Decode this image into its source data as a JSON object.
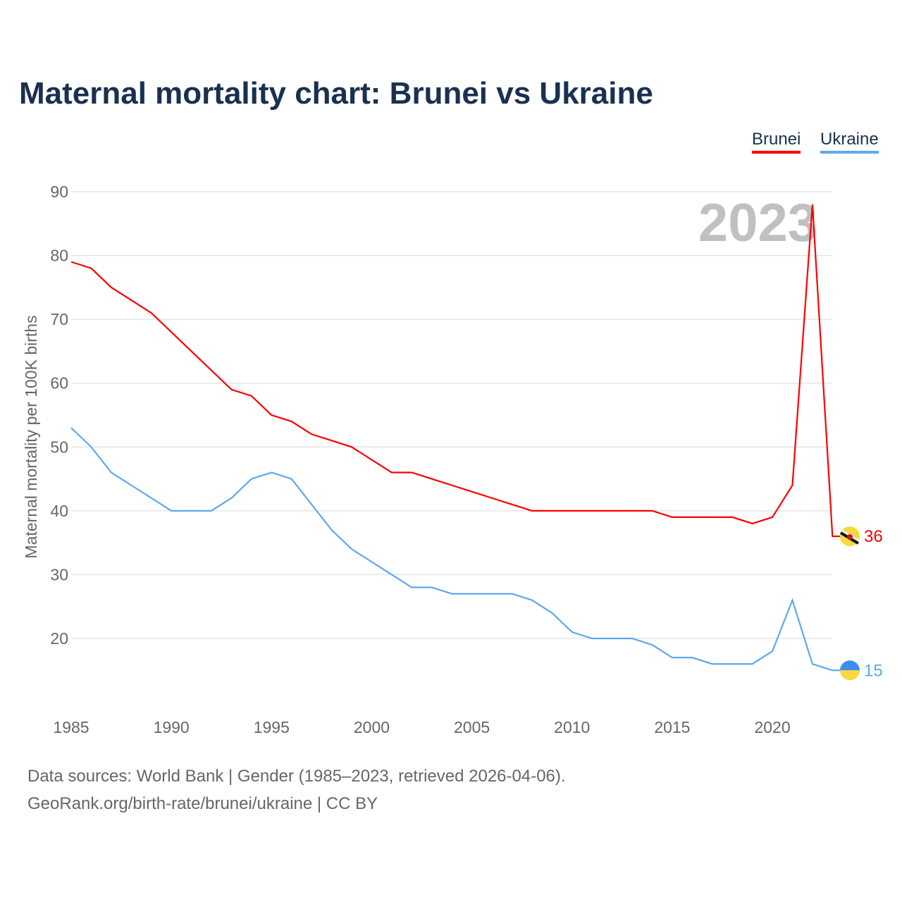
{
  "title": "Maternal mortality chart: Brunei vs Ukraine",
  "legend": [
    {
      "label": "Brunei",
      "color": "#ff0000"
    },
    {
      "label": "Ukraine",
      "color": "#5fa8ee"
    }
  ],
  "footer": {
    "line1": "Data sources: World Bank | Gender (1985–2023, retrieved 2026-04-06).",
    "line2": "GeoRank.org/birth-rate/brunei/ukraine | CC BY"
  },
  "chart_data": {
    "type": "line",
    "title": "Maternal mortality chart: Brunei vs Ukraine",
    "xlabel": "",
    "ylabel": "Maternal mortality per 100K births",
    "year_watermark": "2023",
    "xlim": [
      1985,
      2023
    ],
    "ylim": [
      10,
      90
    ],
    "xticks": [
      1985,
      1990,
      1995,
      2000,
      2005,
      2010,
      2015,
      2020
    ],
    "yticks": [
      20,
      30,
      40,
      50,
      60,
      70,
      80,
      90
    ],
    "grid": true,
    "legend_position": "top-right",
    "x": [
      1985,
      1986,
      1987,
      1988,
      1989,
      1990,
      1991,
      1992,
      1993,
      1994,
      1995,
      1996,
      1997,
      1998,
      1999,
      2000,
      2001,
      2002,
      2003,
      2004,
      2005,
      2006,
      2007,
      2008,
      2009,
      2010,
      2011,
      2012,
      2013,
      2014,
      2015,
      2016,
      2017,
      2018,
      2019,
      2020,
      2021,
      2022,
      2023
    ],
    "series": [
      {
        "name": "Brunei",
        "color": "#ff0000",
        "end_label": "36",
        "values": [
          79,
          78,
          75,
          73,
          71,
          68,
          65,
          62,
          59,
          58,
          55,
          54,
          52,
          51,
          50,
          48,
          46,
          46,
          45,
          44,
          43,
          42,
          41,
          40,
          40,
          40,
          40,
          40,
          40,
          40,
          39,
          39,
          39,
          39,
          38,
          39,
          44,
          88,
          36
        ]
      },
      {
        "name": "Ukraine",
        "color": "#5fa8ee",
        "end_label": "15",
        "values": [
          53,
          50,
          46,
          44,
          42,
          40,
          40,
          40,
          42,
          45,
          46,
          45,
          41,
          37,
          34,
          32,
          30,
          28,
          28,
          27,
          27,
          27,
          27,
          26,
          24,
          21,
          20,
          20,
          20,
          19,
          17,
          17,
          16,
          16,
          16,
          18,
          26,
          16,
          15
        ]
      }
    ]
  }
}
